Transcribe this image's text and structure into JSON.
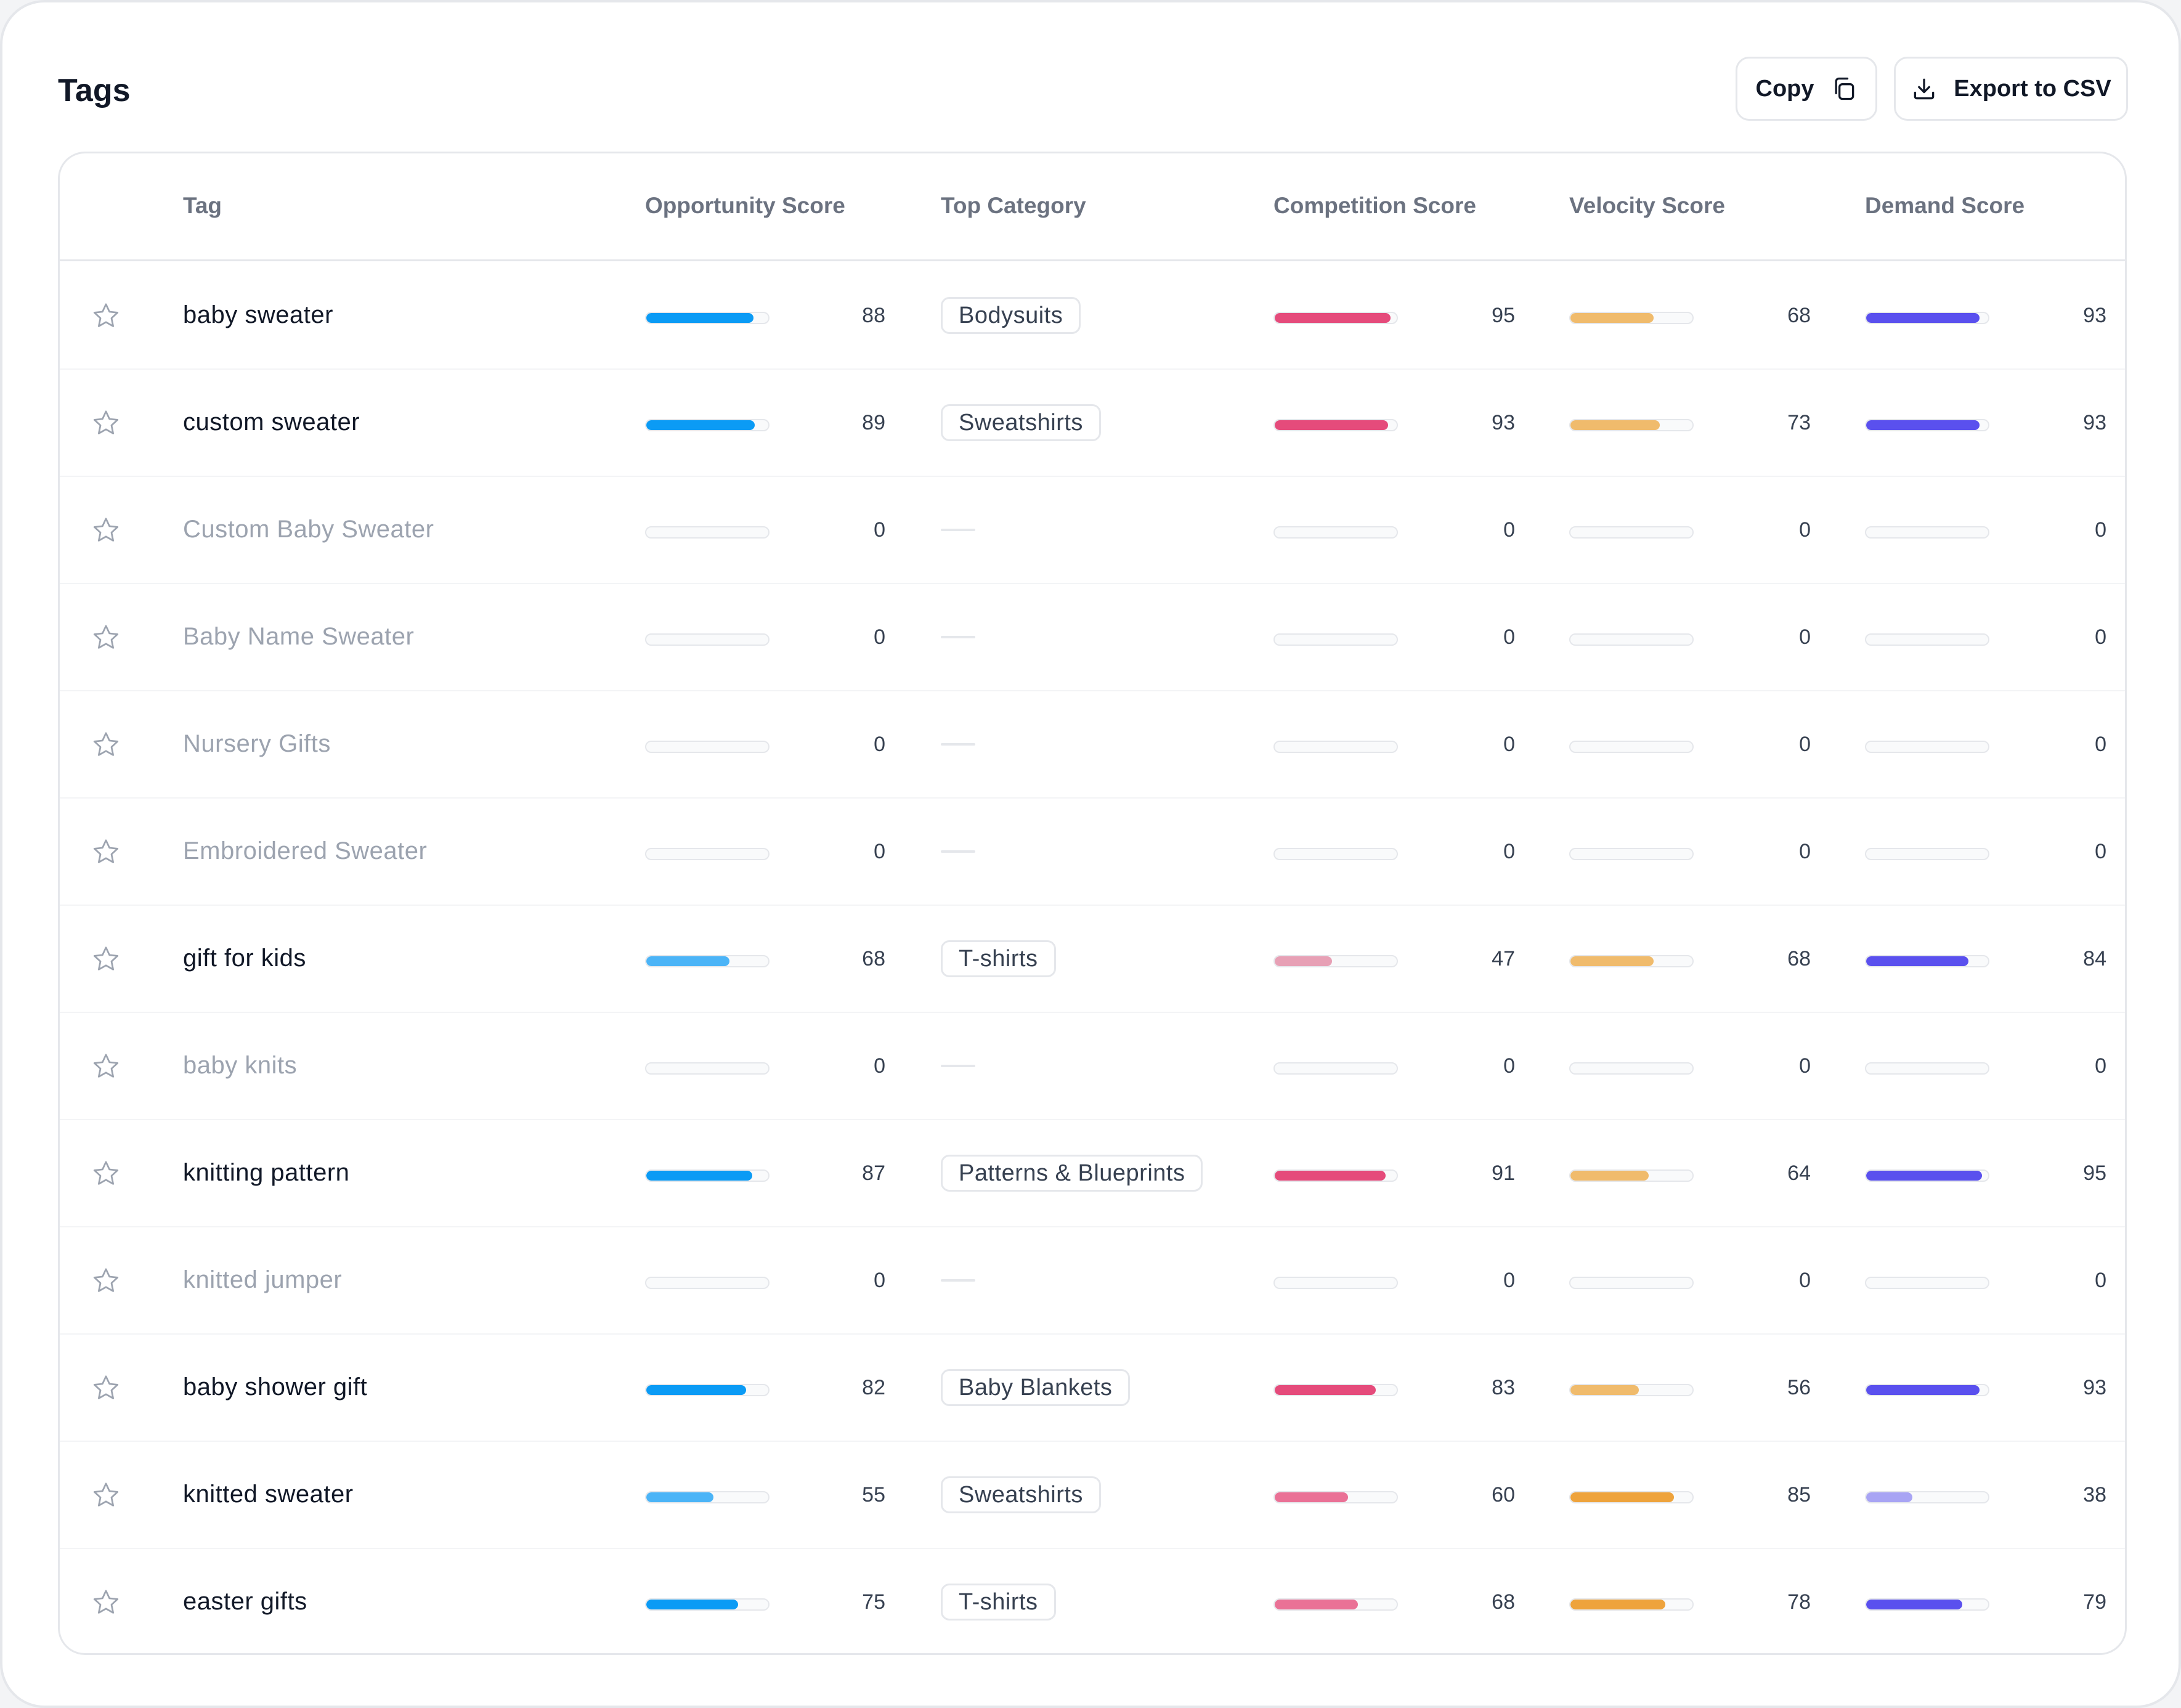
{
  "header": {
    "title": "Tags",
    "copy_label": "Copy",
    "export_label": "Export to CSV"
  },
  "columns": {
    "tag": "Tag",
    "opportunity": "Opportunity Score",
    "category": "Top Category",
    "competition": "Competition Score",
    "velocity": "Velocity Score",
    "demand": "Demand Score"
  },
  "colors": {
    "opportunity_strong": "#0b9bf5",
    "opportunity_light": "#4bb4f7",
    "competition_strong": "#e54b7b",
    "competition_mid": "#ea7196",
    "competition_light": "#e7a0b5",
    "velocity_strong": "#eea33c",
    "velocity_light": "#f0bb6c",
    "demand_strong": "#5a50ee",
    "demand_light": "#a8a4f4",
    "track": "#f9fafb"
  },
  "rows": [
    {
      "tag": "baby sweater",
      "active": true,
      "opportunity": 88,
      "category": "Bodysuits",
      "competition": 95,
      "velocity": 68,
      "demand": 93
    },
    {
      "tag": "custom sweater",
      "active": true,
      "opportunity": 89,
      "category": "Sweatshirts",
      "competition": 93,
      "velocity": 73,
      "demand": 93
    },
    {
      "tag": "Custom Baby Sweater",
      "active": false,
      "opportunity": 0,
      "category": "",
      "competition": 0,
      "velocity": 0,
      "demand": 0
    },
    {
      "tag": "Baby Name Sweater",
      "active": false,
      "opportunity": 0,
      "category": "",
      "competition": 0,
      "velocity": 0,
      "demand": 0
    },
    {
      "tag": "Nursery Gifts",
      "active": false,
      "opportunity": 0,
      "category": "",
      "competition": 0,
      "velocity": 0,
      "demand": 0
    },
    {
      "tag": "Embroidered Sweater",
      "active": false,
      "opportunity": 0,
      "category": "",
      "competition": 0,
      "velocity": 0,
      "demand": 0
    },
    {
      "tag": "gift for kids",
      "active": true,
      "opportunity": 68,
      "category": "T-shirts",
      "competition": 47,
      "velocity": 68,
      "demand": 84
    },
    {
      "tag": "baby knits",
      "active": false,
      "opportunity": 0,
      "category": "",
      "competition": 0,
      "velocity": 0,
      "demand": 0
    },
    {
      "tag": "knitting pattern",
      "active": true,
      "opportunity": 87,
      "category": "Patterns & Blueprints",
      "competition": 91,
      "velocity": 64,
      "demand": 95
    },
    {
      "tag": "knitted jumper",
      "active": false,
      "opportunity": 0,
      "category": "",
      "competition": 0,
      "velocity": 0,
      "demand": 0
    },
    {
      "tag": "baby shower gift",
      "active": true,
      "opportunity": 82,
      "category": "Baby Blankets",
      "competition": 83,
      "velocity": 56,
      "demand": 93
    },
    {
      "tag": "knitted sweater",
      "active": true,
      "opportunity": 55,
      "category": "Sweatshirts",
      "competition": 60,
      "velocity": 85,
      "demand": 38
    },
    {
      "tag": "easter gifts",
      "active": true,
      "opportunity": 75,
      "category": "T-shirts",
      "competition": 68,
      "velocity": 78,
      "demand": 79
    }
  ]
}
